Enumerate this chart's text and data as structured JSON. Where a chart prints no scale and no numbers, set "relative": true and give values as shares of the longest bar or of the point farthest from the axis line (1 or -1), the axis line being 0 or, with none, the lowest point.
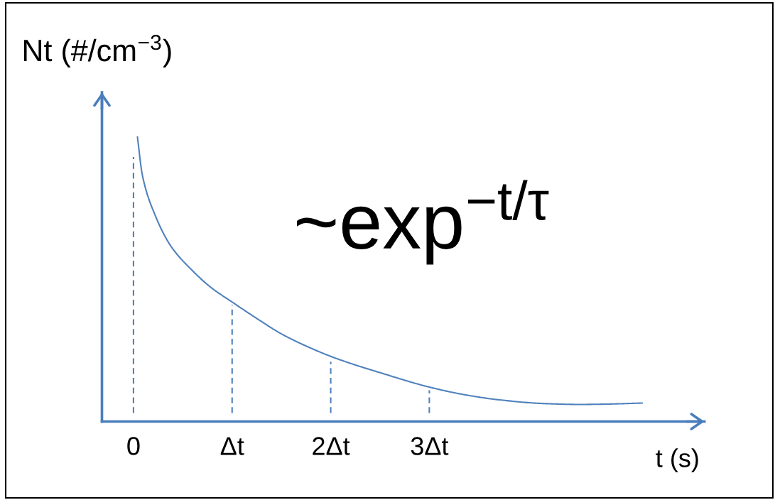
{
  "chart_data": {
    "type": "line",
    "relative": true,
    "xlabel": "t (s)",
    "ylabel": "Nt (#/cm$^{−3}$)",
    "annotations": [
      "~exp$^{−t/τ}$"
    ],
    "xlim": [
      -0.32,
      5.79
    ],
    "xticks": [
      0,
      {
        "value": 1,
        "label": "Δt"
      },
      {
        "value": 2,
        "label": "2Δt"
      },
      {
        "value": 3,
        "label": "3Δt"
      }
    ],
    "tick_labels": "x",
    "series": [
      {
        "color": "#4f81bd",
        "line_style": "solid",
        "x": [
          0.04,
          0.09,
          0.21,
          0.38,
          0.59,
          0.79,
          1.0,
          1.26,
          1.5,
          1.74,
          2.0,
          2.23,
          2.46,
          3.0,
          3.33,
          3.69,
          4.17,
          4.53,
          4.77,
          5.16
        ],
        "values": [
          1.0,
          0.866,
          0.733,
          0.616,
          0.533,
          0.47,
          0.42,
          0.36,
          0.308,
          0.267,
          0.229,
          0.201,
          0.176,
          0.121,
          0.096,
          0.077,
          0.063,
          0.06,
          0.061,
          0.065
        ]
      },
      {
        "color": "#4f81bd",
        "line_style": "dashed",
        "x": [
          0,
          0
        ],
        "values": [
          0.03,
          0.93
        ]
      },
      {
        "color": "#4f81bd",
        "line_style": "dashed",
        "x": [
          1,
          1
        ],
        "values": [
          0.03,
          0.41
        ]
      },
      {
        "color": "#4f81bd",
        "line_style": "dashed",
        "x": [
          2,
          2
        ],
        "values": [
          0.03,
          0.21
        ]
      },
      {
        "color": "#4f81bd",
        "line_style": "dashed",
        "x": [
          3,
          3
        ],
        "values": [
          0.03,
          0.11
        ]
      }
    ]
  }
}
